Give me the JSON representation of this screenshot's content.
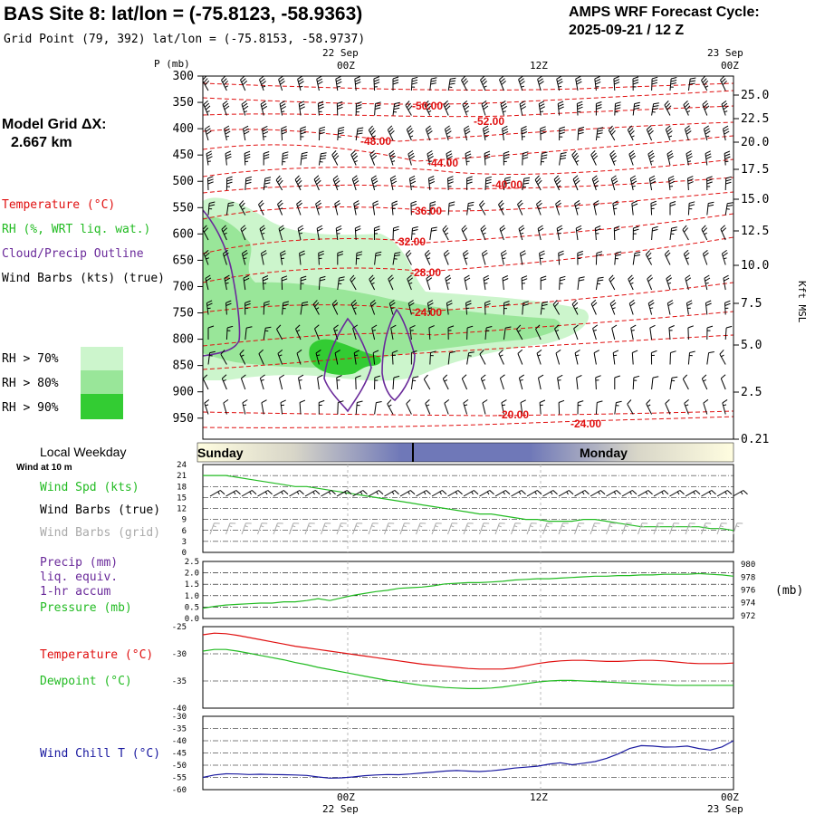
{
  "header": {
    "title": "BAS Site 8:  lat/lon = (-75.8123, -58.9363)",
    "subtitle": "Grid Point (79, 392) lat/lon = (-75.8153, -58.9737)",
    "cycle_line1": "AMPS WRF Forecast Cycle:",
    "cycle_line2": "2025-09-21 / 12  Z"
  },
  "legend": {
    "grid_label": "Model Grid ΔX:",
    "grid_value": "2.667 km",
    "temperature": "Temperature (°C)",
    "rh": "RH (%, WRT liq. wat.)",
    "cloud": "Cloud/Precip Outline",
    "wind": "Wind Barbs (kts) (true)",
    "rh70": "RH > 70%",
    "rh80": "RH > 80%",
    "rh90": "RH > 90%",
    "local_weekday": "Local Weekday",
    "wind_10m": "Wind at 10 m",
    "wind_spd": "Wind Spd (kts)",
    "wind_barbs_true": "Wind Barbs (true)",
    "wind_barbs_grid": "Wind Barbs (grid)",
    "precip": "Precip (mm)",
    "liq": "liq. equiv.",
    "accum": "1-hr accum",
    "pressure": "Pressure (mb)",
    "temp2": "Temperature (°C)",
    "dewpoint": "Dewpoint (°C)",
    "windchill": "Wind Chill T (°C)"
  },
  "colors": {
    "temperature": "#e01010",
    "rh": "#22bb22",
    "cloud": "#6a2a9a",
    "wind": "#000000",
    "wind_grid": "#aaaaaa",
    "pressure": "#22bb22",
    "dewpoint": "#22bb22",
    "windchill": "#1a1aa0",
    "rh70": "#ccf5cc",
    "rh80": "#99e699",
    "rh90": "#33cc33"
  },
  "time_axis": {
    "top_dates": [
      "22 Sep",
      "23 Sep"
    ],
    "top_hours": [
      "00Z",
      "12Z",
      "00Z"
    ],
    "bottom_hours": [
      "00Z",
      "12Z",
      "00Z"
    ],
    "bottom_dates": [
      "22 Sep",
      "23 Sep"
    ],
    "day_labels": [
      "Sunday",
      "Monday"
    ]
  },
  "chart_data": [
    {
      "type": "heatmap",
      "description_labels": "pressure-time cross section",
      "y_axis_label": "P (mb)",
      "pressure_ticks": [
        300,
        350,
        400,
        450,
        500,
        550,
        600,
        650,
        700,
        750,
        800,
        850,
        900,
        950
      ],
      "right_axis_label": "Kft MSL",
      "height_ticks": [
        "25.0",
        "22.5",
        "20.0",
        "17.5",
        "15.0",
        "12.5",
        "10.0",
        "7.5",
        "5.0",
        "2.5",
        "0.21"
      ],
      "temperature_isotherm_labels": [
        "-50.00",
        "-52.00",
        "-48.00",
        "-44.00",
        "-40.00",
        "-36.00",
        "-32.00",
        "-28.00",
        "-24.00",
        "-20.00",
        "-24.00"
      ]
    },
    {
      "type": "line",
      "panel": "wind",
      "y_ticks": [
        0,
        3,
        6,
        9,
        12,
        15,
        18,
        21,
        24
      ],
      "ylim": [
        0,
        24
      ],
      "series": [
        {
          "name": "Wind Spd (kts)",
          "values": [
            21,
            21,
            21,
            20.5,
            20,
            19.5,
            19,
            18.5,
            18,
            18,
            17.5,
            17,
            16.5,
            16,
            15.5,
            15,
            14.5,
            14,
            13.5,
            13,
            12.5,
            12,
            11.5,
            11,
            10.5,
            10.5,
            10,
            9.5,
            9,
            9,
            8.5,
            8.5,
            8.5,
            9,
            9,
            8.5,
            8,
            7.5,
            7,
            7,
            7,
            7,
            7,
            7,
            6.5,
            6.5,
            6
          ]
        }
      ]
    },
    {
      "type": "line",
      "panel": "precip-pressure",
      "y_ticks_left": [
        0,
        0.5,
        1.0,
        1.5,
        2.0,
        2.5
      ],
      "y_ticks_right": [
        972,
        974,
        976,
        978,
        980
      ],
      "right_unit": "(mb)",
      "series": [
        {
          "name": "Pressure (mb)",
          "values": [
            973.0,
            973.3,
            973.5,
            973.6,
            973.7,
            973.8,
            973.8,
            974.0,
            974.0,
            974.2,
            974.5,
            974.2,
            974.6,
            975.0,
            975.3,
            975.6,
            975.8,
            976.1,
            976.2,
            976.3,
            976.5,
            976.8,
            976.9,
            977.0,
            977.0,
            977.1,
            977.2,
            977.4,
            977.5,
            977.6,
            977.6,
            977.7,
            977.8,
            977.9,
            978.0,
            978.0,
            978.1,
            978.1,
            978.2,
            978.2,
            978.3,
            978.3,
            978.3,
            978.4,
            978.3,
            978.2,
            978.0
          ]
        }
      ]
    },
    {
      "type": "line",
      "panel": "temperature",
      "y_ticks": [
        -25,
        -30,
        -35,
        -40
      ],
      "ylim": [
        -40,
        -25
      ],
      "series": [
        {
          "name": "Temperature (°C)",
          "values": [
            -26.5,
            -26.2,
            -26.3,
            -26.6,
            -27.0,
            -27.4,
            -27.8,
            -28.2,
            -28.6,
            -28.9,
            -29.2,
            -29.5,
            -29.8,
            -30.1,
            -30.4,
            -30.7,
            -31.0,
            -31.3,
            -31.6,
            -31.9,
            -32.1,
            -32.3,
            -32.5,
            -32.7,
            -32.8,
            -32.8,
            -32.8,
            -32.6,
            -32.2,
            -31.8,
            -31.5,
            -31.3,
            -31.2,
            -31.2,
            -31.3,
            -31.4,
            -31.4,
            -31.3,
            -31.2,
            -31.2,
            -31.3,
            -31.5,
            -31.7,
            -31.8,
            -31.8,
            -31.8,
            -31.7
          ]
        },
        {
          "name": "Dewpoint (°C)",
          "values": [
            -29.5,
            -29.2,
            -29.2,
            -29.5,
            -29.9,
            -30.3,
            -30.7,
            -31.1,
            -31.6,
            -32.0,
            -32.5,
            -32.9,
            -33.3,
            -33.7,
            -34.1,
            -34.5,
            -34.9,
            -35.2,
            -35.5,
            -35.8,
            -36.0,
            -36.2,
            -36.3,
            -36.4,
            -36.4,
            -36.3,
            -36.1,
            -35.8,
            -35.5,
            -35.2,
            -35.0,
            -34.9,
            -34.9,
            -35.0,
            -35.1,
            -35.2,
            -35.3,
            -35.4,
            -35.5,
            -35.6,
            -35.7,
            -35.8,
            -35.8,
            -35.8,
            -35.8,
            -35.8,
            -35.8
          ]
        }
      ]
    },
    {
      "type": "line",
      "panel": "windchill",
      "y_ticks": [
        -30,
        -35,
        -40,
        -45,
        -50,
        -55,
        -60
      ],
      "ylim": [
        -60,
        -30
      ],
      "series": [
        {
          "name": "Wind Chill T (°C)",
          "values": [
            -55.0,
            -54.0,
            -53.5,
            -53.6,
            -53.8,
            -53.7,
            -53.8,
            -53.9,
            -54.0,
            -54.2,
            -54.8,
            -55.3,
            -55.2,
            -54.8,
            -54.3,
            -54.0,
            -53.8,
            -53.9,
            -53.6,
            -53.2,
            -52.8,
            -52.4,
            -52.2,
            -52.4,
            -52.6,
            -52.3,
            -51.8,
            -51.2,
            -50.8,
            -50.4,
            -49.6,
            -49.0,
            -49.8,
            -49.2,
            -48.5,
            -47.2,
            -45.4,
            -43.2,
            -42.0,
            -42.2,
            -42.6,
            -42.5,
            -42.2,
            -43.2,
            -43.8,
            -42.5,
            -40.0
          ]
        }
      ]
    }
  ]
}
